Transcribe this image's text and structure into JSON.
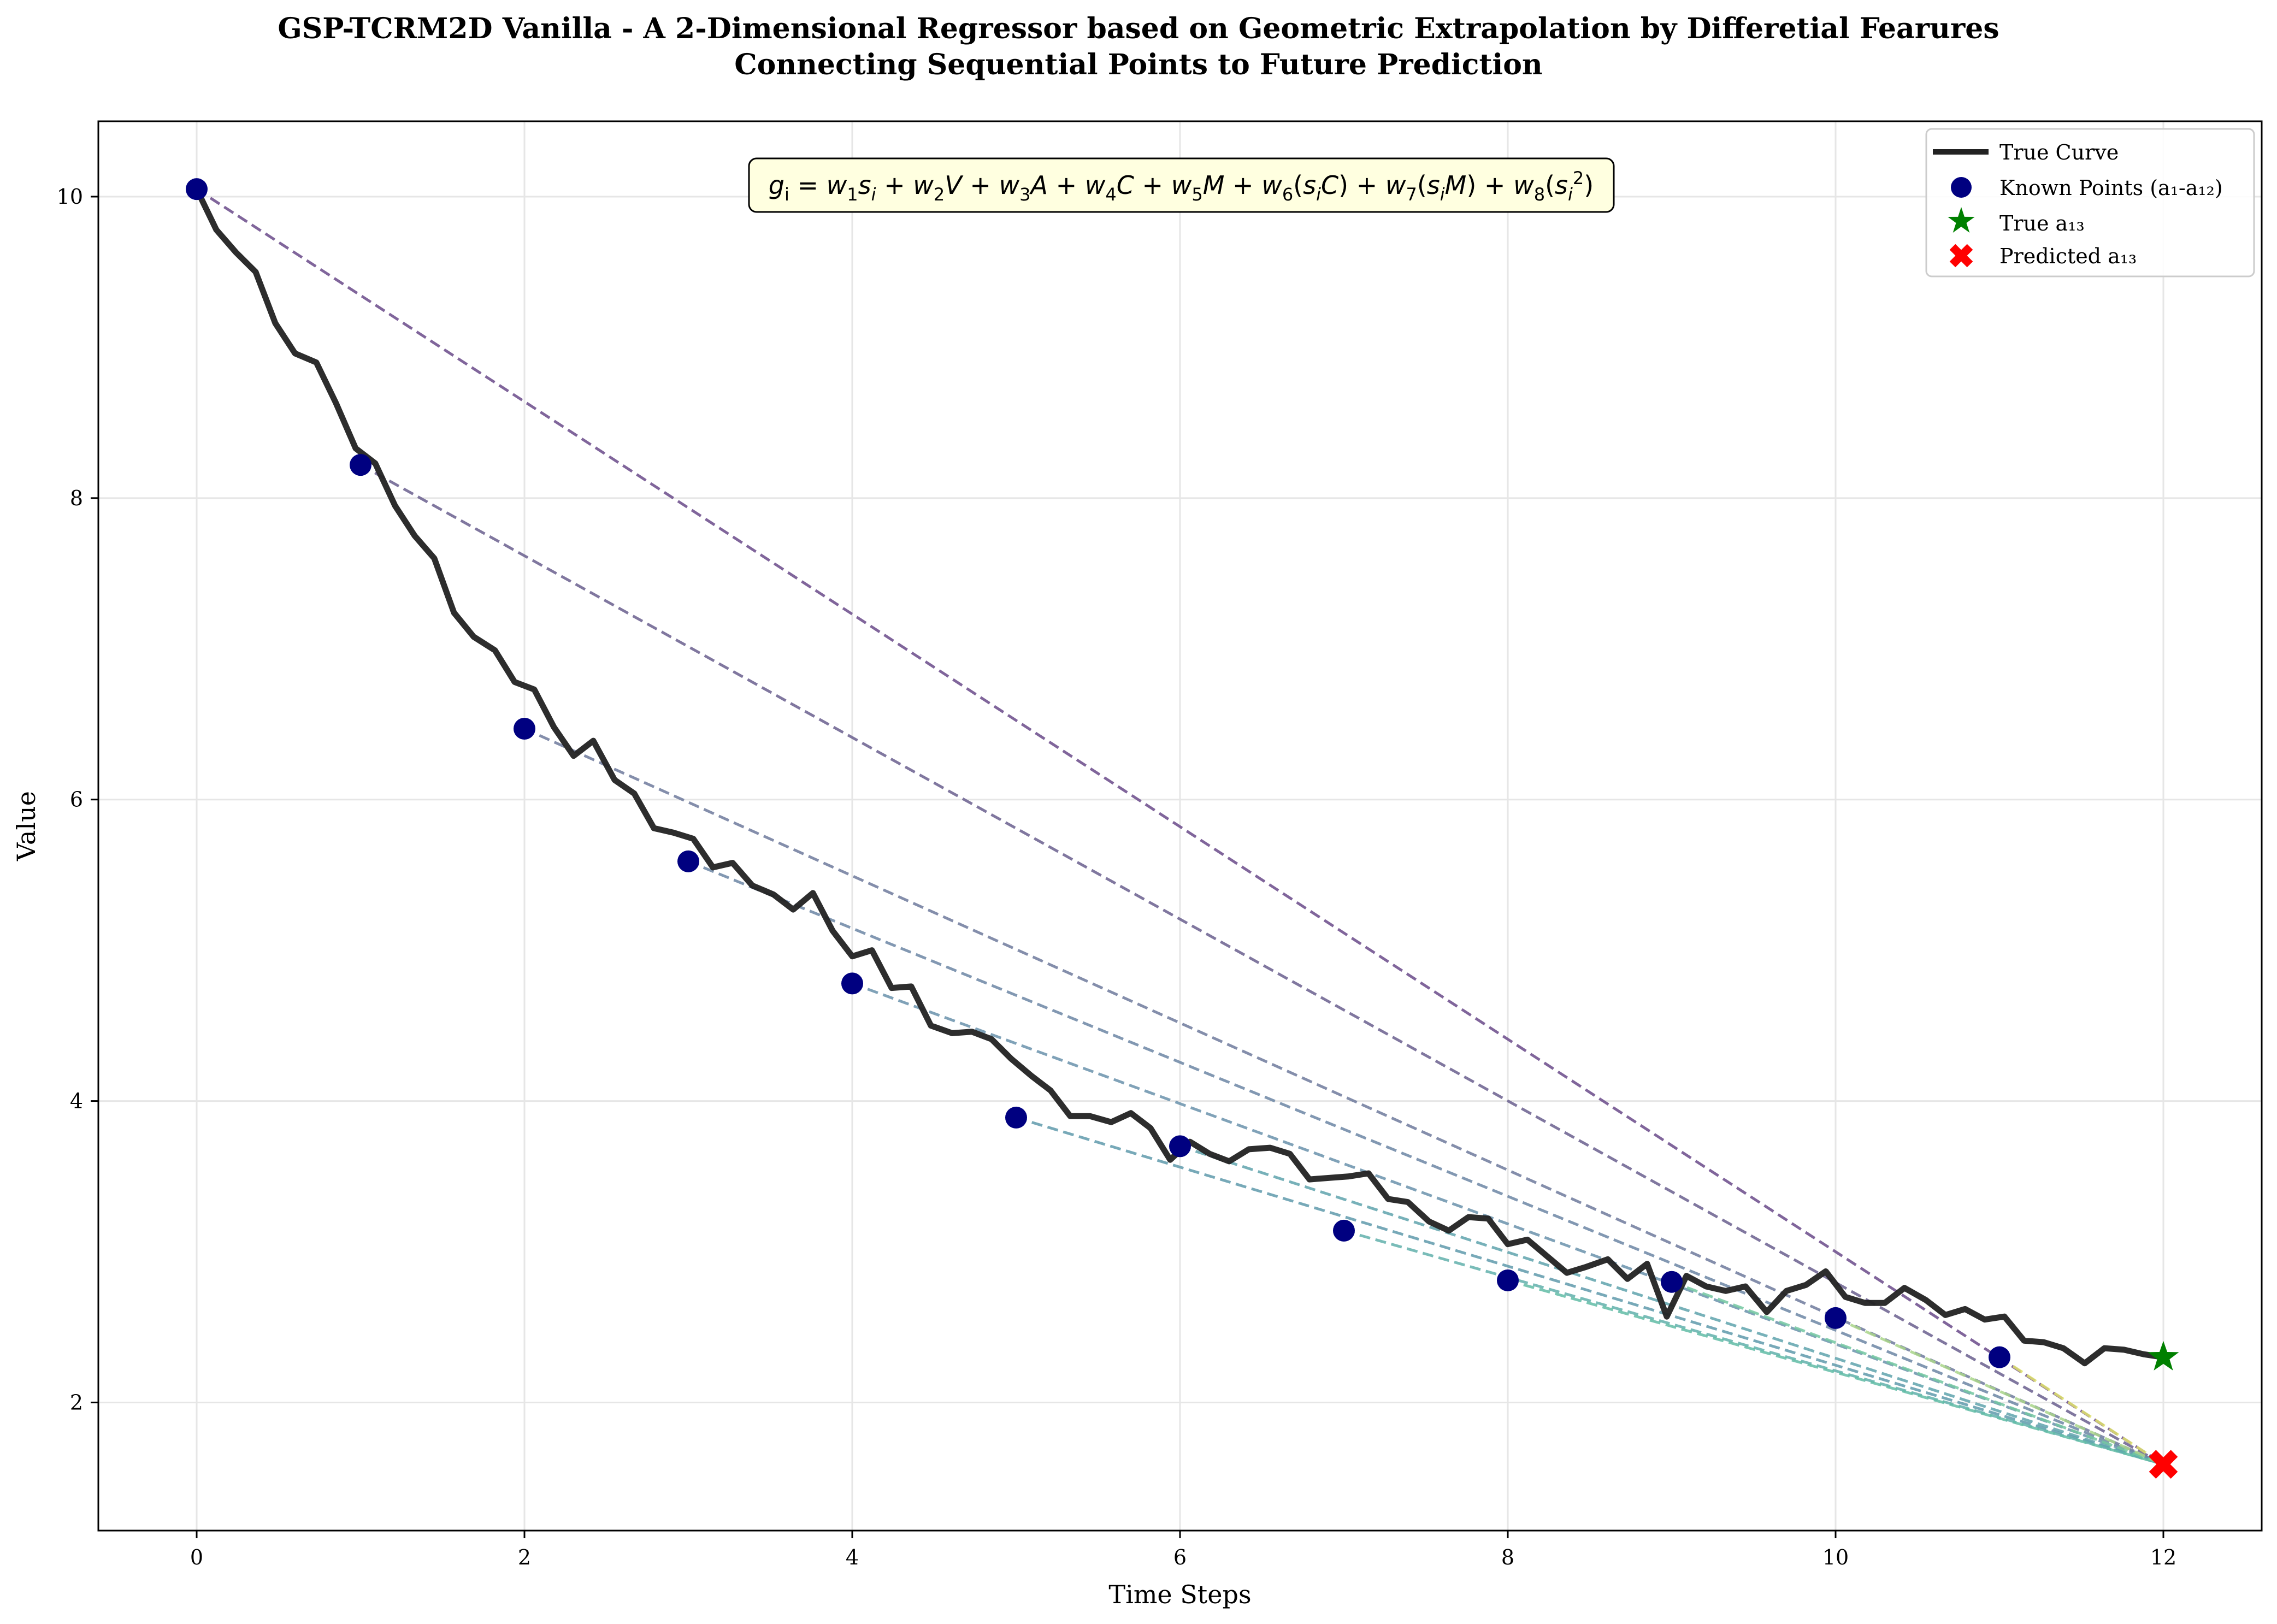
{
  "chart_data": {
    "type": "line",
    "title": "GSP-TCRM2D Vanilla - A 2-Dimensional Regressor based on Geometric Extrapolation by Differetial Fearures",
    "subtitle": "Connecting Sequential Points to Future Prediction",
    "xlabel": "Time Steps",
    "ylabel": "Value",
    "xlim": [
      -0.6,
      12.6
    ],
    "ylim": [
      1.15,
      10.5
    ],
    "x_ticks": [
      0,
      2,
      4,
      6,
      8,
      10,
      12
    ],
    "y_ticks": [
      2,
      4,
      6,
      8,
      10
    ],
    "grid": true,
    "legend_position": "top-right",
    "formula": {
      "lhs": "g",
      "lhs_sub": "i",
      "terms": [
        {
          "w": "w",
          "ws": "1",
          "body": [
            {
              "t": "s",
              "i": true
            },
            {
              "t": "i",
              "sub": true
            }
          ]
        },
        {
          "w": "w",
          "ws": "2",
          "body": [
            {
              "t": "V",
              "i": true
            }
          ]
        },
        {
          "w": "w",
          "ws": "3",
          "body": [
            {
              "t": "A",
              "i": true
            }
          ]
        },
        {
          "w": "w",
          "ws": "4",
          "body": [
            {
              "t": "C",
              "i": true
            }
          ]
        },
        {
          "w": "w",
          "ws": "5",
          "body": [
            {
              "t": "M",
              "i": true
            }
          ]
        },
        {
          "w": "w",
          "ws": "6",
          "body": [
            {
              "t": "("
            },
            {
              "t": "s",
              "i": true
            },
            {
              "t": "i",
              "sub": true
            },
            {
              "t": "C",
              "i": true
            },
            {
              "t": ")"
            }
          ]
        },
        {
          "w": "w",
          "ws": "7",
          "body": [
            {
              "t": "("
            },
            {
              "t": "s",
              "i": true
            },
            {
              "t": "i",
              "sub": true
            },
            {
              "t": "M",
              "i": true
            },
            {
              "t": ")"
            }
          ]
        },
        {
          "w": "w",
          "ws": "8",
          "body": [
            {
              "t": "("
            },
            {
              "t": "s",
              "i": true
            },
            {
              "t": "i",
              "sub": true
            },
            {
              "t": "2",
              "sup": true
            },
            {
              "t": ")"
            }
          ]
        }
      ]
    },
    "series": [
      {
        "name": "True Curve",
        "kind": "line",
        "color": "#222222",
        "x": [
          0,
          0.12,
          0.24,
          0.36,
          0.48,
          0.6,
          0.73,
          0.85,
          0.97,
          1.09,
          1.21,
          1.33,
          1.45,
          1.57,
          1.69,
          1.82,
          1.94,
          2.06,
          2.18,
          2.3,
          2.42,
          2.55,
          2.67,
          2.79,
          2.91,
          3.03,
          3.15,
          3.27,
          3.39,
          3.52,
          3.64,
          3.76,
          3.88,
          4.0,
          4.12,
          4.24,
          4.36,
          4.48,
          4.61,
          4.73,
          4.85,
          4.97,
          5.09,
          5.21,
          5.33,
          5.45,
          5.58,
          5.7,
          5.82,
          5.94,
          6.06,
          6.18,
          6.3,
          6.42,
          6.55,
          6.67,
          6.79,
          6.91,
          7.03,
          7.15,
          7.27,
          7.39,
          7.52,
          7.64,
          7.76,
          7.88,
          8.0,
          8.12,
          8.24,
          8.36,
          8.48,
          8.61,
          8.73,
          8.85,
          8.97,
          9.09,
          9.21,
          9.33,
          9.45,
          9.58,
          9.7,
          9.82,
          9.94,
          10.06,
          10.18,
          10.3,
          10.42,
          10.55,
          10.67,
          10.79,
          10.91,
          11.03,
          11.15,
          11.27,
          11.39,
          11.52,
          11.64,
          11.76,
          11.88,
          12.0
        ],
        "y": [
          10.05,
          9.78,
          9.63,
          9.5,
          9.16,
          8.96,
          8.9,
          8.63,
          8.33,
          8.23,
          7.95,
          7.75,
          7.6,
          7.24,
          7.08,
          6.99,
          6.78,
          6.73,
          6.48,
          6.29,
          6.39,
          6.13,
          6.04,
          5.81,
          5.78,
          5.74,
          5.55,
          5.58,
          5.43,
          5.37,
          5.27,
          5.38,
          5.13,
          4.96,
          5.0,
          4.75,
          4.76,
          4.5,
          4.45,
          4.46,
          4.41,
          4.28,
          4.17,
          4.07,
          3.9,
          3.9,
          3.86,
          3.92,
          3.82,
          3.61,
          3.73,
          3.65,
          3.6,
          3.68,
          3.69,
          3.65,
          3.48,
          3.49,
          3.5,
          3.52,
          3.35,
          3.33,
          3.2,
          3.14,
          3.23,
          3.22,
          3.05,
          3.08,
          2.97,
          2.86,
          2.9,
          2.95,
          2.82,
          2.92,
          2.57,
          2.84,
          2.77,
          2.74,
          2.77,
          2.6,
          2.74,
          2.78,
          2.87,
          2.7,
          2.66,
          2.66,
          2.76,
          2.68,
          2.58,
          2.62,
          2.55,
          2.57,
          2.41,
          2.4,
          2.36,
          2.26,
          2.36,
          2.35,
          2.32,
          2.3
        ]
      },
      {
        "name": "Known Points (a₁-a₁₂)",
        "kind": "scatter",
        "color": "#000080",
        "x": [
          0,
          1,
          2,
          3,
          4,
          5,
          6,
          7,
          8,
          9,
          10,
          11
        ],
        "y": [
          10.05,
          8.22,
          6.47,
          5.59,
          4.78,
          3.89,
          3.7,
          3.14,
          2.81,
          2.8,
          2.56,
          2.3
        ]
      },
      {
        "name": "True a₁₃",
        "kind": "star",
        "color": "#008000",
        "x": [
          12
        ],
        "y": [
          2.3
        ]
      },
      {
        "name": "Predicted a₁₃",
        "kind": "cross",
        "color": "#ff0000",
        "x": [
          12
        ],
        "y": [
          1.59
        ]
      }
    ],
    "connectors": {
      "style": "dashed",
      "target": [
        12,
        1.59
      ],
      "colors": [
        "#6a4a8a",
        "#6a5f8e",
        "#6f7a9c",
        "#6c86a5",
        "#6a92ab",
        "#5f9aab",
        "#5fa3ad",
        "#62b0ab",
        "#62bca6",
        "#73c7a1",
        "#a9d58a",
        "#dfe26d"
      ]
    }
  }
}
